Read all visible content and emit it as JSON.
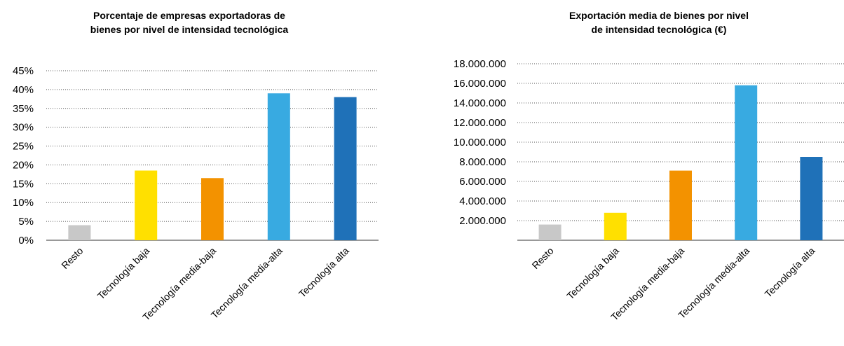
{
  "chart_data": [
    {
      "type": "bar",
      "title": [
        "Porcentaje de empresas exportadoras de",
        "bienes por nivel de intensidad tecnológica"
      ],
      "categories": [
        "Resto",
        "Tecnología baja",
        "Tecnología media-baja",
        "Tecnología media-alta",
        "Tecnología alta"
      ],
      "values": [
        4,
        18.5,
        16.5,
        39,
        38
      ],
      "colors": [
        "#C8C8C8",
        "#FFE000",
        "#F39200",
        "#38AAE1",
        "#1F71B8"
      ],
      "ylim": [
        0,
        45
      ],
      "yticks": [
        0,
        5,
        10,
        15,
        20,
        25,
        30,
        35,
        40,
        45
      ],
      "ytick_labels": [
        "0%",
        "5%",
        "10%",
        "15%",
        "20%",
        "25%",
        "30%",
        "35%",
        "40%",
        "45%"
      ],
      "grid": true,
      "xlabel": "",
      "ylabel": ""
    },
    {
      "type": "bar",
      "title": [
        "Exportación media de bienes por nivel",
        "de intensidad tecnológica (€)"
      ],
      "categories": [
        "Resto",
        "Tecnología baja",
        "Tecnología media-baja",
        "Tecnología media-alta",
        "Tecnología alta"
      ],
      "values": [
        1600000,
        2800000,
        7100000,
        15800000,
        8500000
      ],
      "colors": [
        "#C8C8C8",
        "#FFE000",
        "#F39200",
        "#38AAE1",
        "#1F71B8"
      ],
      "ylim": [
        0,
        18000000
      ],
      "yticks": [
        2000000,
        4000000,
        6000000,
        8000000,
        10000000,
        12000000,
        14000000,
        16000000,
        18000000
      ],
      "ytick_labels": [
        "2.000.000",
        "4.000.000",
        "6.000.000",
        "8.000.000",
        "10.000.000",
        "12.000.000",
        "14.000.000",
        "16.000.000",
        "18.000.000"
      ],
      "grid": true,
      "xlabel": "",
      "ylabel": ""
    }
  ]
}
